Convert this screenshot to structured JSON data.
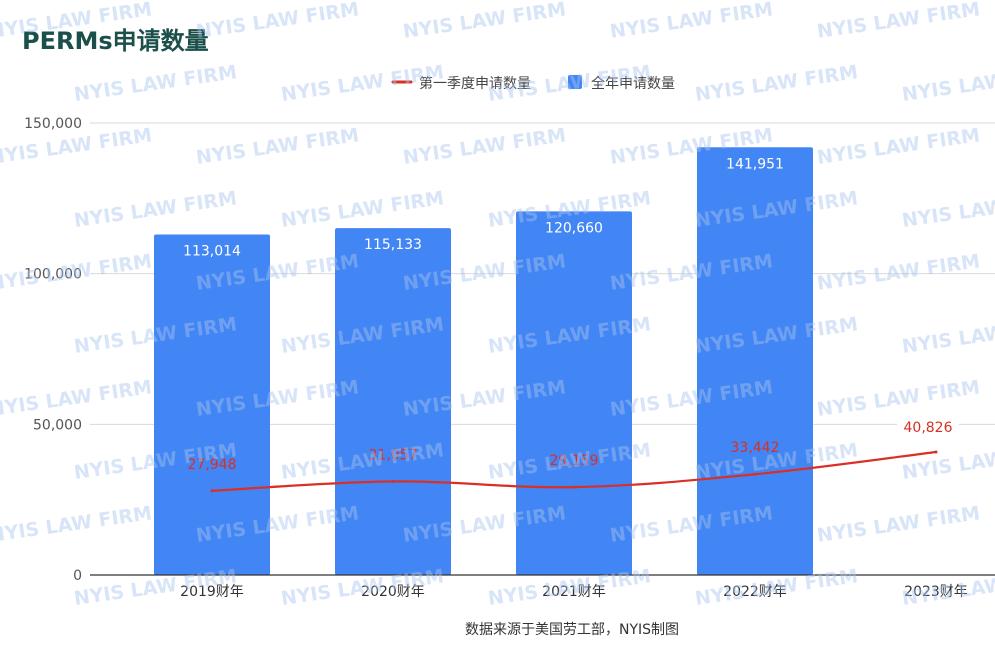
{
  "chart_data": {
    "type": "bar",
    "title": "PERMs申请数量",
    "categories": [
      "2019财年",
      "2020财年",
      "2021财年",
      "2022财年",
      "2023财年"
    ],
    "series": [
      {
        "name": "全年申请数量",
        "kind": "bar",
        "color": "#4285f4",
        "values": [
          113014,
          115133,
          120660,
          141951,
          null
        ],
        "labels": [
          "113,014",
          "115,133",
          "120,660",
          "141,951",
          ""
        ]
      },
      {
        "name": "第一季度申请数量",
        "kind": "line",
        "color": "#d93025",
        "values": [
          27948,
          31057,
          29159,
          33442,
          40826
        ],
        "labels": [
          "27,948",
          "31,057",
          "29,159",
          "33,442",
          "40,826"
        ]
      }
    ],
    "yticks": [
      "0",
      "50,000",
      "100,000",
      "150,000"
    ],
    "ylim": [
      0,
      150000
    ],
    "grid": true,
    "legend_position": "top"
  },
  "legend": {
    "line_label": "第一季度申请数量",
    "bar_label": "全年申请数量"
  },
  "source_note": "数据来源于美国劳工部，NYIS制图",
  "watermark": "NYIS LAW FIRM"
}
